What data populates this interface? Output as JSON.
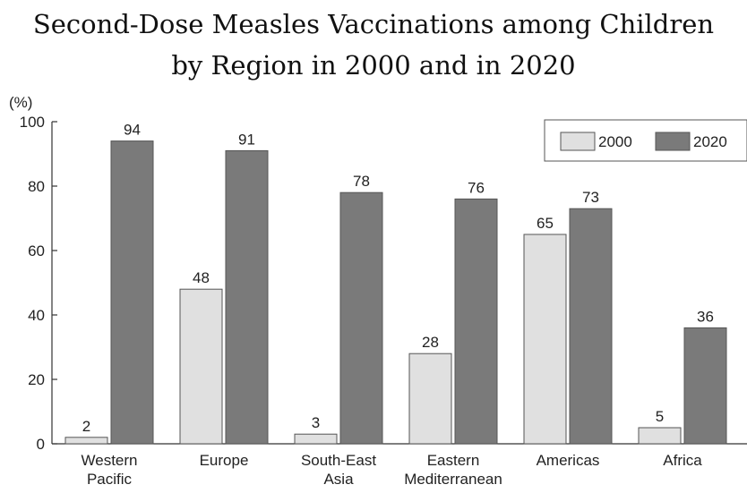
{
  "chart_data": {
    "type": "bar",
    "title": [
      "Second-Dose Measles Vaccinations among Children",
      "by Region in 2000 and in 2020"
    ],
    "y_unit": "(%)",
    "ylim": [
      0,
      100
    ],
    "yticks": [
      0,
      20,
      40,
      60,
      80,
      100
    ],
    "categories": [
      [
        "Western",
        "Pacific"
      ],
      [
        "Europe"
      ],
      [
        "South-East",
        "Asia"
      ],
      [
        "Eastern",
        "Mediterranean"
      ],
      [
        "Americas"
      ],
      [
        "Africa"
      ]
    ],
    "series": [
      {
        "name": "2000",
        "values": [
          2,
          48,
          3,
          28,
          65,
          5
        ],
        "color": "#e0e0e0"
      },
      {
        "name": "2020",
        "values": [
          94,
          91,
          78,
          76,
          73,
          36
        ],
        "color": "#7a7a7a"
      }
    ],
    "grid": false,
    "legend_position": "top-right"
  }
}
